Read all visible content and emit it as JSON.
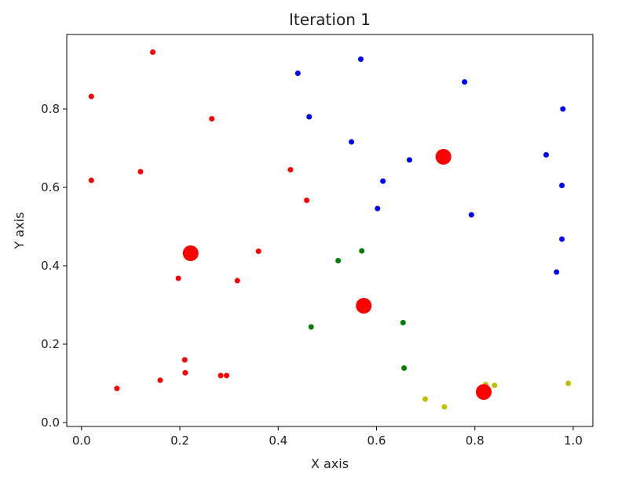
{
  "chart_data": {
    "type": "scatter",
    "title": "Iteration 1",
    "xlabel": "X axis",
    "ylabel": "Y axis",
    "xlim": [
      -0.03,
      1.04
    ],
    "ylim": [
      -0.01,
      0.99
    ],
    "xticks": [
      0.0,
      0.2,
      0.4,
      0.6,
      0.8,
      1.0
    ],
    "xtick_labels": [
      "0.0",
      "0.2",
      "0.4",
      "0.6",
      "0.8",
      "1.0"
    ],
    "yticks": [
      0.0,
      0.2,
      0.4,
      0.6,
      0.8
    ],
    "ytick_labels": [
      "0.0",
      "0.2",
      "0.4",
      "0.6",
      "0.8"
    ],
    "grid": false,
    "legend": "none",
    "series": [
      {
        "color": "#ff0000",
        "points": [
          [
            0.145,
            0.945
          ],
          [
            0.02,
            0.832
          ],
          [
            0.265,
            0.775
          ],
          [
            0.12,
            0.64
          ],
          [
            0.02,
            0.618
          ],
          [
            0.425,
            0.645
          ],
          [
            0.458,
            0.567
          ],
          [
            0.36,
            0.437
          ],
          [
            0.197,
            0.368
          ],
          [
            0.317,
            0.362
          ],
          [
            0.21,
            0.16
          ],
          [
            0.211,
            0.127
          ],
          [
            0.283,
            0.12
          ],
          [
            0.295,
            0.12
          ],
          [
            0.16,
            0.108
          ],
          [
            0.072,
            0.087
          ]
        ]
      },
      {
        "color": "#0000ff",
        "points": [
          [
            0.568,
            0.927
          ],
          [
            0.44,
            0.891
          ],
          [
            0.779,
            0.869
          ],
          [
            0.463,
            0.78
          ],
          [
            0.979,
            0.8
          ],
          [
            0.549,
            0.716
          ],
          [
            0.667,
            0.67
          ],
          [
            0.945,
            0.683
          ],
          [
            0.613,
            0.616
          ],
          [
            0.977,
            0.605
          ],
          [
            0.602,
            0.546
          ],
          [
            0.793,
            0.53
          ],
          [
            0.977,
            0.468
          ],
          [
            0.966,
            0.384
          ]
        ]
      },
      {
        "color": "#008000",
        "points": [
          [
            0.522,
            0.413
          ],
          [
            0.57,
            0.438
          ],
          [
            0.467,
            0.244
          ],
          [
            0.654,
            0.255
          ],
          [
            0.656,
            0.139
          ]
        ]
      },
      {
        "color": "#bfbf00",
        "points": [
          [
            0.84,
            0.095
          ],
          [
            0.822,
            0.097
          ],
          [
            0.99,
            0.1
          ],
          [
            0.699,
            0.06
          ],
          [
            0.738,
            0.04
          ]
        ]
      }
    ],
    "centroids": {
      "color": "#ff0000",
      "points": [
        [
          0.736,
          0.678
        ],
        [
          0.222,
          0.432
        ],
        [
          0.574,
          0.298
        ],
        [
          0.818,
          0.078
        ]
      ]
    }
  }
}
